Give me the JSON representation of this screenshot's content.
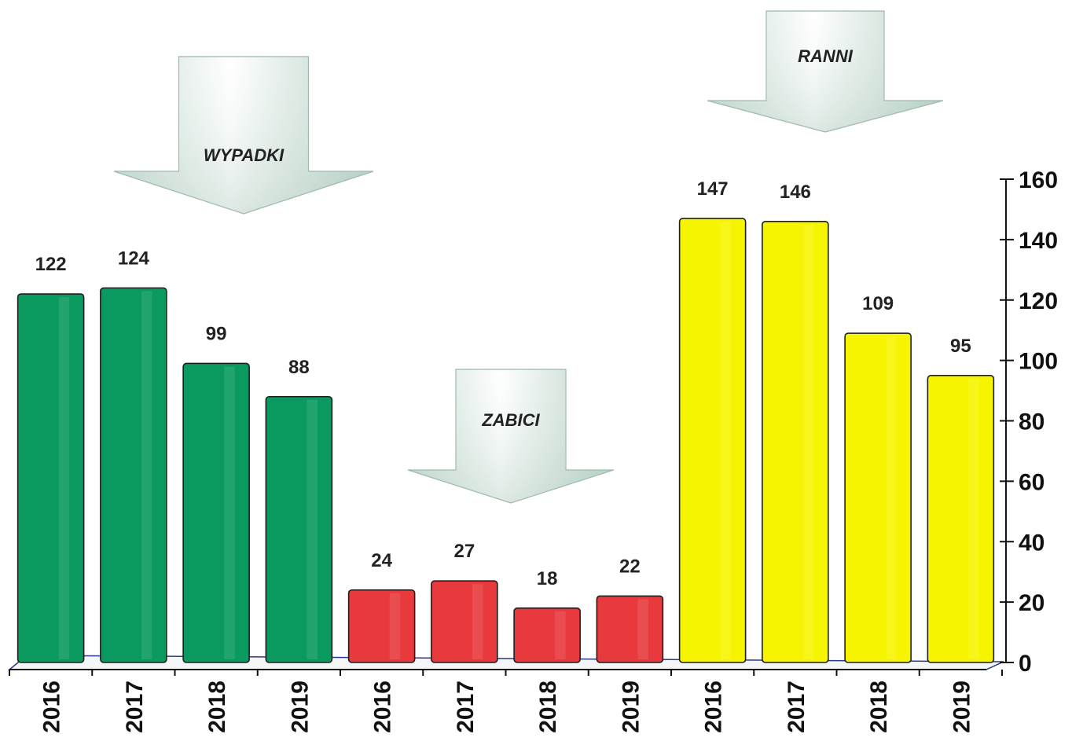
{
  "chart_data": {
    "type": "bar",
    "categories": [
      "2016",
      "2017",
      "2018",
      "2019",
      "2016",
      "2017",
      "2018",
      "2019",
      "2016",
      "2017",
      "2018",
      "2019"
    ],
    "groups": [
      {
        "name": "WYPADKI",
        "color": "#0a9a5f",
        "values": [
          122,
          124,
          99,
          88
        ]
      },
      {
        "name": "ZABICI",
        "color": "#e8393d",
        "values": [
          24,
          27,
          18,
          22
        ]
      },
      {
        "name": "RANNI",
        "color": "#f7f400",
        "values": [
          147,
          146,
          109,
          95
        ]
      }
    ],
    "ylim": [
      0,
      160
    ],
    "yticks": [
      "0",
      "20",
      "40",
      "60",
      "80",
      "100",
      "120",
      "140",
      "160"
    ],
    "y_axis_side": "right",
    "grid": false,
    "legend": "none",
    "title": "",
    "xlabel": "",
    "ylabel": ""
  }
}
